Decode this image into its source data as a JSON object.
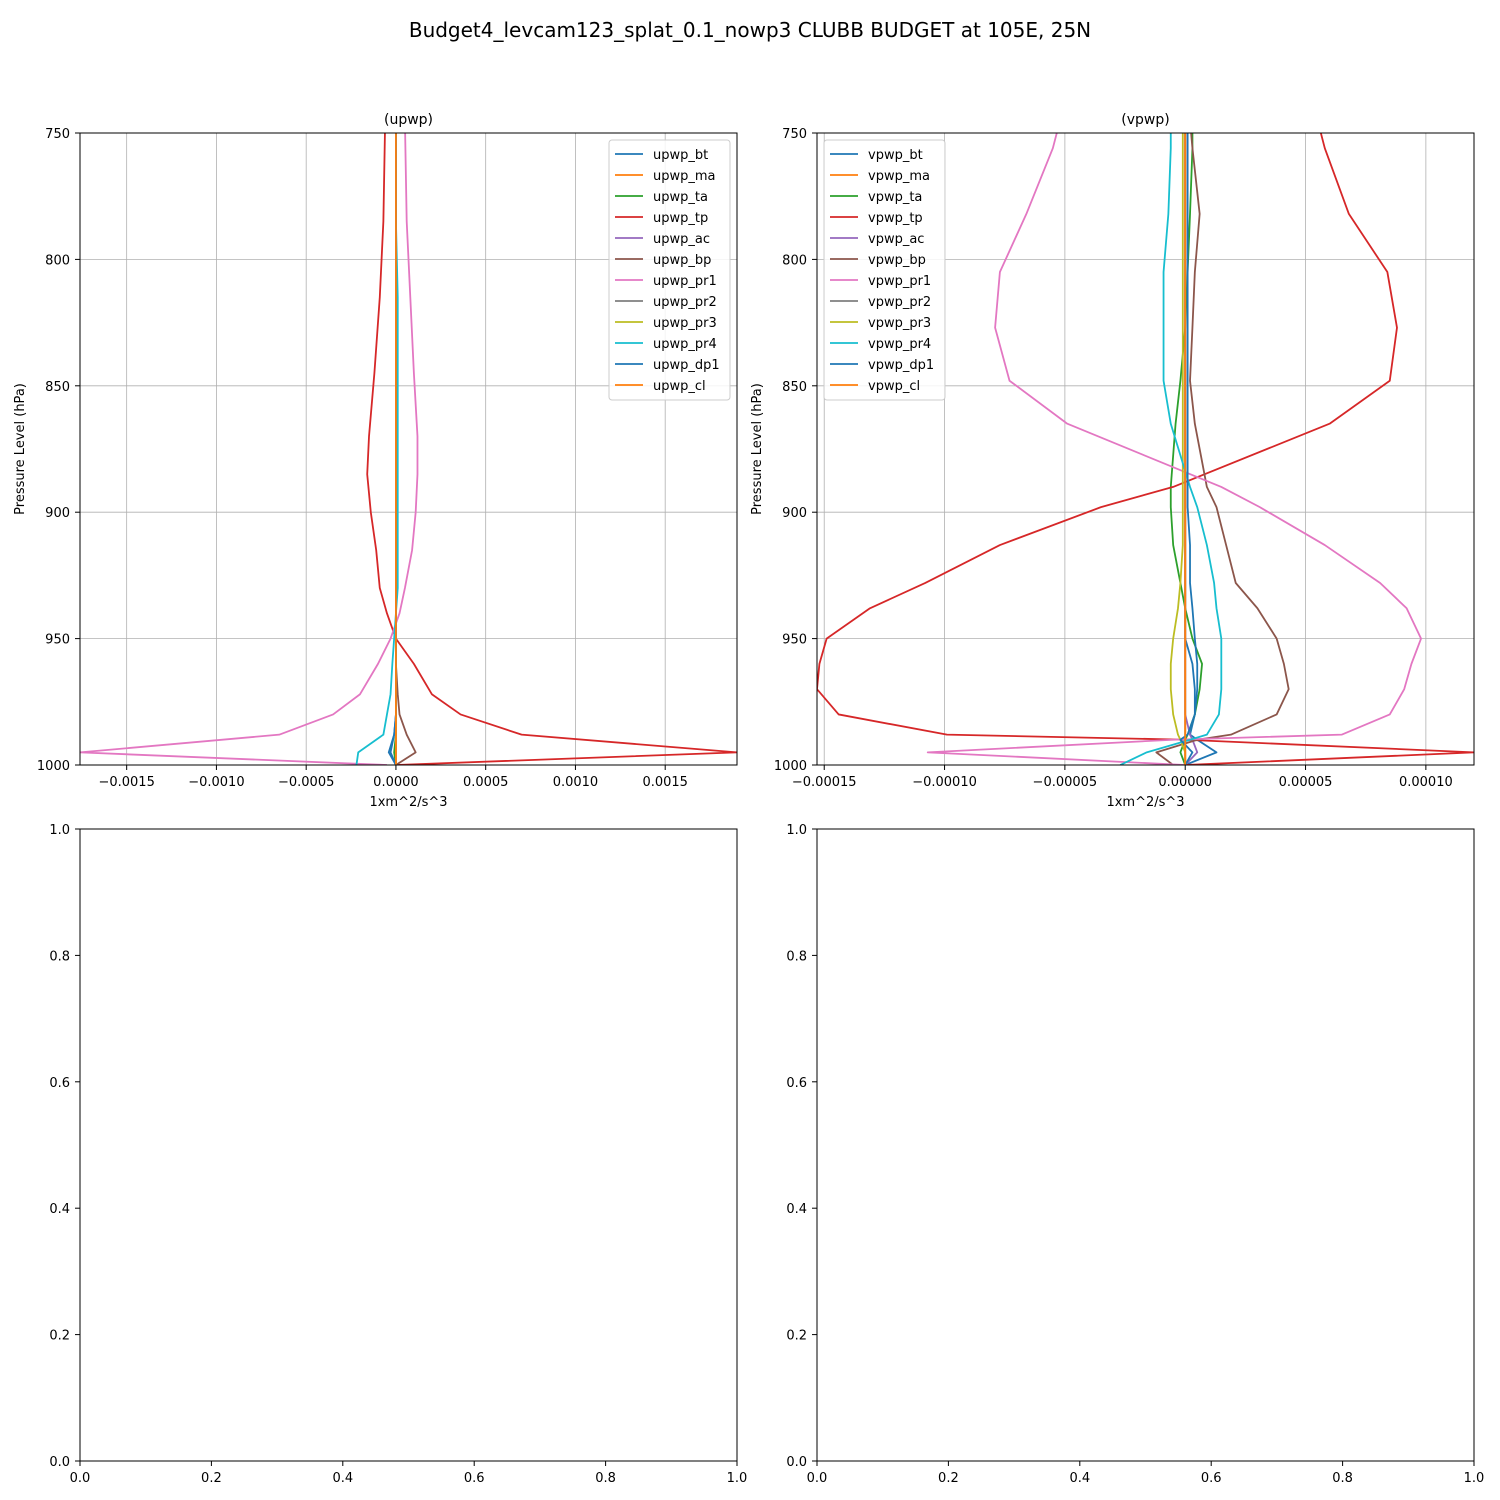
{
  "figure": {
    "suptitle": "Budget4_levcam123_splat_0.1_nowp3 CLUBB BUDGET at 105E, 25N"
  },
  "chart_data": [
    {
      "type": "line",
      "title": "(upwp)",
      "xlabel": "1xm^2/s^3",
      "ylabel": "Pressure Level (hPa)",
      "xlim": [
        -0.00176,
        0.0019
      ],
      "ylim": [
        1000,
        750
      ],
      "y_inverted": true,
      "xticks": [
        -0.0015,
        -0.001,
        -0.0005,
        0.0,
        0.0005,
        0.001,
        0.0015
      ],
      "xtick_labels": [
        "−0.0015",
        "−0.0010",
        "−0.0005",
        "0.0000",
        "0.0005",
        "0.0010",
        "0.0015"
      ],
      "yticks": [
        750,
        800,
        850,
        900,
        950,
        1000
      ],
      "ytick_labels": [
        "750",
        "800",
        "850",
        "900",
        "950",
        "1000"
      ],
      "grid": true,
      "legend": "top-right",
      "y": [
        745,
        785,
        815,
        845,
        870,
        885,
        900,
        915,
        930,
        940,
        950,
        960,
        972,
        980,
        988,
        995,
        1000
      ],
      "series": [
        {
          "name": "upwp_bt",
          "color": "#1f77b4",
          "values": [
            0,
            0,
            0,
            0,
            0,
            0,
            0,
            0,
            0,
            0,
            0,
            0,
            0,
            0,
            -1e-05,
            -4e-05,
            0
          ]
        },
        {
          "name": "upwp_ma",
          "color": "#ff7f0e",
          "values": [
            0,
            0,
            0,
            0,
            0,
            0,
            0,
            0,
            0,
            0,
            0,
            0,
            0,
            0,
            0,
            0,
            0
          ]
        },
        {
          "name": "upwp_ta",
          "color": "#2ca02c",
          "values": [
            0,
            0,
            0,
            0,
            0,
            0,
            0,
            0,
            0,
            0,
            0,
            0,
            0,
            0,
            0,
            -1e-05,
            0
          ]
        },
        {
          "name": "upwp_tp",
          "color": "#d62728",
          "values": [
            -6e-05,
            -7e-05,
            -9e-05,
            -0.00012,
            -0.00015,
            -0.00016,
            -0.00014,
            -0.00011,
            -9e-05,
            -5e-05,
            0,
            0.0001,
            0.0002,
            0.00036,
            0.0007,
            0.0019,
            0
          ]
        },
        {
          "name": "upwp_ac",
          "color": "#9467bd",
          "values": [
            0,
            0,
            0,
            0,
            0,
            0,
            0,
            0,
            0,
            0,
            0,
            0,
            0,
            0,
            0,
            0,
            0
          ]
        },
        {
          "name": "upwp_bp",
          "color": "#8c564b",
          "values": [
            0,
            0,
            0,
            0,
            0,
            0,
            0,
            0,
            0,
            0,
            0,
            0,
            1e-05,
            2e-05,
            6e-05,
            0.00011,
            0
          ]
        },
        {
          "name": "upwp_pr1",
          "color": "#e377c2",
          "values": [
            5e-05,
            6e-05,
            8e-05,
            0.0001,
            0.00012,
            0.00012,
            0.00011,
            9e-05,
            5e-05,
            2e-05,
            -3e-05,
            -0.0001,
            -0.0002,
            -0.00035,
            -0.00065,
            -0.00176,
            -5e-05
          ]
        },
        {
          "name": "upwp_pr2",
          "color": "#7f7f7f",
          "values": [
            0,
            0,
            0,
            0,
            0,
            0,
            0,
            0,
            0,
            0,
            0,
            0,
            0,
            0,
            0,
            0,
            0
          ]
        },
        {
          "name": "upwp_pr3",
          "color": "#bcbd22",
          "values": [
            0,
            0,
            0,
            0,
            0,
            0,
            0,
            0,
            0,
            0,
            0,
            0,
            0,
            0,
            0,
            0,
            0
          ]
        },
        {
          "name": "upwp_pr4",
          "color": "#17becf",
          "values": [
            0,
            0,
            1e-05,
            1e-05,
            1e-05,
            1e-05,
            1e-05,
            1e-05,
            1e-05,
            0,
            -1e-05,
            -2e-05,
            -3e-05,
            -5e-05,
            -7e-05,
            -0.00021,
            -0.00022
          ]
        },
        {
          "name": "upwp_dp1",
          "color": "#1f77b4",
          "values": [
            0,
            0,
            0,
            0,
            0,
            0,
            0,
            0,
            0,
            0,
            0,
            0,
            0,
            0,
            -1e-05,
            -3e-05,
            0
          ]
        },
        {
          "name": "upwp_cl",
          "color": "#ff7f0e",
          "values": [
            0,
            0,
            0,
            0,
            0,
            0,
            0,
            0,
            0,
            0,
            0,
            0,
            0,
            0,
            0,
            0,
            0
          ]
        }
      ]
    },
    {
      "type": "line",
      "title": "(vpwp)",
      "xlabel": "1xm^2/s^3",
      "ylabel": "Pressure Level (hPa)",
      "xlim": [
        -0.000153,
        0.00012
      ],
      "ylim": [
        1000,
        750
      ],
      "y_inverted": true,
      "xticks": [
        -0.00015,
        -0.0001,
        -5e-05,
        0.0,
        5e-05,
        0.0001
      ],
      "xtick_labels": [
        "−0.00015",
        "−0.00010",
        "−0.00005",
        "0.00000",
        "0.00005",
        "0.00010"
      ],
      "yticks": [
        750,
        800,
        850,
        900,
        950,
        1000
      ],
      "ytick_labels": [
        "750",
        "800",
        "850",
        "900",
        "950",
        "1000"
      ],
      "grid": true,
      "legend": "top-left",
      "y": [
        745,
        756,
        782,
        805,
        827,
        848,
        865,
        890,
        898,
        913,
        928,
        938,
        950,
        960,
        970,
        980,
        988,
        990,
        995,
        1000
      ],
      "series": [
        {
          "name": "vpwp_bt",
          "color": "#1f77b4",
          "values": [
            0,
            0,
            0,
            0,
            0,
            0,
            0,
            0,
            0,
            0,
            0,
            0,
            0,
            3e-06,
            4e-06,
            4e-06,
            2e-06,
            5e-06,
            1.3e-05,
            0
          ]
        },
        {
          "name": "vpwp_ma",
          "color": "#ff7f0e",
          "values": [
            0,
            0,
            0,
            0,
            0,
            0,
            0,
            0,
            0,
            0,
            0,
            0,
            0,
            0,
            0,
            0,
            0,
            0,
            0,
            0
          ]
        },
        {
          "name": "vpwp_ta",
          "color": "#2ca02c",
          "values": [
            3e-06,
            3e-06,
            2e-06,
            1e-06,
            0,
            -2e-06,
            -4e-06,
            -6e-06,
            -6e-06,
            -5e-06,
            -2e-06,
            0,
            3e-06,
            7e-06,
            6e-06,
            4e-06,
            1e-06,
            0,
            -2e-06,
            0
          ]
        },
        {
          "name": "vpwp_tp",
          "color": "#d62728",
          "values": [
            5.5e-05,
            5.8e-05,
            6.8e-05,
            8.4e-05,
            8.8e-05,
            8.5e-05,
            6e-05,
            -5e-06,
            -3.5e-05,
            -7.7e-05,
            -0.000108,
            -0.000131,
            -0.000149,
            -0.000152,
            -0.000153,
            -0.000144,
            -9.9e-05,
            0,
            0.00012,
            0
          ]
        },
        {
          "name": "vpwp_ac",
          "color": "#9467bd",
          "values": [
            0,
            0,
            0,
            0,
            0,
            0,
            0,
            0,
            0,
            0,
            0,
            0,
            0,
            0,
            0,
            0,
            2e-06,
            3e-06,
            5e-06,
            0
          ]
        },
        {
          "name": "vpwp_bp",
          "color": "#8c564b",
          "values": [
            2e-06,
            3e-06,
            6e-06,
            4e-06,
            3e-06,
            2e-06,
            4e-06,
            9e-06,
            1.3e-05,
            1.7e-05,
            2.1e-05,
            3e-05,
            3.8e-05,
            4.1e-05,
            4.3e-05,
            3.8e-05,
            1.9e-05,
            5e-06,
            -1.2e-05,
            -5e-06
          ]
        },
        {
          "name": "vpwp_pr1",
          "color": "#e377c2",
          "values": [
            -5.2e-05,
            -5.5e-05,
            -6.6e-05,
            -7.7e-05,
            -7.9e-05,
            -7.3e-05,
            -4.9e-05,
            1.5e-05,
            3.1e-05,
            5.8e-05,
            8.1e-05,
            9.2e-05,
            9.8e-05,
            9.4e-05,
            9.1e-05,
            8.5e-05,
            6.5e-05,
            -5e-06,
            -0.000107,
            0
          ]
        },
        {
          "name": "vpwp_pr2",
          "color": "#7f7f7f",
          "values": [
            0,
            0,
            0,
            0,
            0,
            0,
            0,
            0,
            0,
            0,
            0,
            0,
            0,
            0,
            0,
            0,
            0,
            0,
            0,
            0
          ]
        },
        {
          "name": "vpwp_pr3",
          "color": "#bcbd22",
          "values": [
            -1e-06,
            -1e-06,
            -1e-06,
            -1e-06,
            -1e-06,
            -1e-06,
            -1e-06,
            -1e-06,
            -1e-06,
            -1e-06,
            -2e-06,
            -3e-06,
            -5e-06,
            -6e-06,
            -6e-06,
            -5e-06,
            -3e-06,
            -2e-06,
            0,
            0
          ]
        },
        {
          "name": "vpwp_pr4",
          "color": "#17becf",
          "values": [
            -6e-06,
            -6e-06,
            -7e-06,
            -9e-06,
            -9e-06,
            -9e-06,
            -6e-06,
            2e-06,
            5e-06,
            9e-06,
            1.2e-05,
            1.3e-05,
            1.5e-05,
            1.5e-05,
            1.5e-05,
            1.4e-05,
            9e-06,
            2e-06,
            -1.6e-05,
            -2.7e-05
          ]
        },
        {
          "name": "vpwp_dp1",
          "color": "#1f77b4",
          "values": [
            1e-06,
            1e-06,
            1e-06,
            1e-06,
            1e-06,
            1e-06,
            1e-06,
            1e-06,
            1e-06,
            2e-06,
            2e-06,
            3e-06,
            4e-06,
            5e-06,
            5e-06,
            4e-06,
            1e-06,
            -2e-06,
            3e-06,
            0
          ]
        },
        {
          "name": "vpwp_cl",
          "color": "#ff7f0e",
          "values": [
            0,
            0,
            0,
            0,
            0,
            0,
            0,
            0,
            0,
            0,
            0,
            0,
            0,
            0,
            0,
            0,
            0,
            0,
            0,
            0
          ]
        }
      ]
    },
    {
      "type": "line",
      "title": "",
      "xlim": [
        0,
        1
      ],
      "ylim": [
        0,
        1
      ],
      "xticks": [
        0.0,
        0.2,
        0.4,
        0.6,
        0.8,
        1.0
      ],
      "xtick_labels": [
        "0.0",
        "0.2",
        "0.4",
        "0.6",
        "0.8",
        "1.0"
      ],
      "yticks": [
        0.0,
        0.2,
        0.4,
        0.6,
        0.8,
        1.0
      ],
      "ytick_labels": [
        "0.0",
        "0.2",
        "0.4",
        "0.6",
        "0.8",
        "1.0"
      ],
      "grid": false,
      "series": []
    },
    {
      "type": "line",
      "title": "",
      "xlim": [
        0,
        1
      ],
      "ylim": [
        0,
        1
      ],
      "xticks": [
        0.0,
        0.2,
        0.4,
        0.6,
        0.8,
        1.0
      ],
      "xtick_labels": [
        "0.0",
        "0.2",
        "0.4",
        "0.6",
        "0.8",
        "1.0"
      ],
      "yticks": [
        0.0,
        0.2,
        0.4,
        0.6,
        0.8,
        1.0
      ],
      "ytick_labels": [
        "0.0",
        "0.2",
        "0.4",
        "0.6",
        "0.8",
        "1.0"
      ],
      "grid": false,
      "series": []
    }
  ]
}
